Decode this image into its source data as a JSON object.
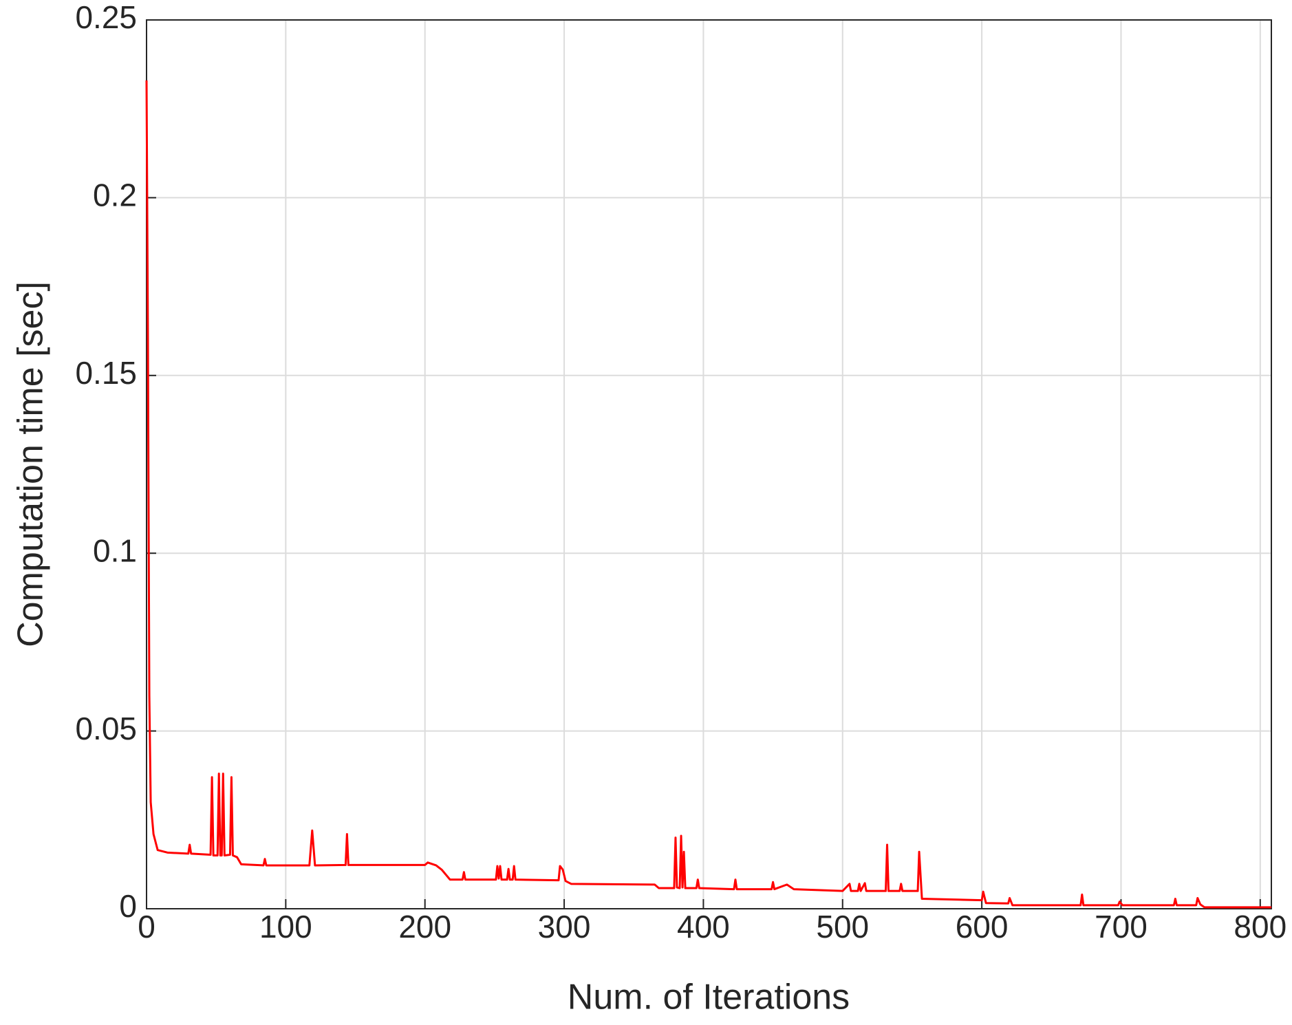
{
  "chart_data": {
    "type": "line",
    "xlabel": "Num. of Iterations",
    "ylabel": "Computation time [sec]",
    "xlim": [
      0,
      808
    ],
    "ylim": [
      0,
      0.25
    ],
    "xticks": [
      0,
      100,
      200,
      300,
      400,
      500,
      600,
      700,
      800
    ],
    "yticks": [
      0,
      0.05,
      0.1,
      0.15,
      0.2,
      0.25
    ],
    "grid": true,
    "x": [
      0,
      1,
      2,
      3,
      5,
      8,
      15,
      30,
      31,
      32,
      46,
      47,
      48,
      51,
      52,
      53,
      54,
      55,
      56,
      60,
      61,
      62,
      65,
      68,
      84,
      85,
      86,
      117,
      119,
      121,
      143,
      144,
      145,
      200,
      202,
      208,
      212,
      218,
      227,
      228,
      229,
      251,
      252,
      253,
      254,
      255,
      259,
      260,
      261,
      263,
      264,
      265,
      296,
      297,
      299,
      301,
      305,
      365,
      368,
      379,
      380,
      381,
      383,
      384,
      385,
      386,
      387,
      395,
      396,
      397,
      422,
      423,
      424,
      449,
      450,
      451,
      460,
      465,
      500,
      505,
      506,
      511,
      512,
      513,
      516,
      517,
      531,
      532,
      533,
      541,
      542,
      543,
      554,
      555,
      557,
      600,
      601,
      603,
      619,
      620,
      622,
      671,
      672,
      673,
      698,
      699,
      701,
      738,
      739,
      740,
      754,
      755,
      757,
      760,
      808
    ],
    "series": [
      {
        "color": "#ff0000",
        "values": [
          0.233,
          0.16,
          0.06,
          0.03,
          0.021,
          0.0165,
          0.0158,
          0.0155,
          0.018,
          0.0155,
          0.0152,
          0.037,
          0.015,
          0.015,
          0.038,
          0.015,
          0.015,
          0.038,
          0.015,
          0.0152,
          0.037,
          0.015,
          0.0145,
          0.0125,
          0.0122,
          0.014,
          0.0122,
          0.0122,
          0.022,
          0.0122,
          0.0123,
          0.021,
          0.0123,
          0.0123,
          0.013,
          0.0122,
          0.011,
          0.0082,
          0.0082,
          0.0103,
          0.0082,
          0.0082,
          0.012,
          0.0085,
          0.012,
          0.0082,
          0.0082,
          0.0112,
          0.0082,
          0.0082,
          0.012,
          0.0082,
          0.008,
          0.012,
          0.011,
          0.0078,
          0.007,
          0.0068,
          0.0058,
          0.0058,
          0.02,
          0.006,
          0.0058,
          0.0205,
          0.006,
          0.016,
          0.0058,
          0.0058,
          0.0082,
          0.0058,
          0.0055,
          0.0082,
          0.0055,
          0.0055,
          0.0075,
          0.0055,
          0.0068,
          0.0055,
          0.005,
          0.007,
          0.005,
          0.005,
          0.007,
          0.005,
          0.0072,
          0.005,
          0.005,
          0.018,
          0.005,
          0.005,
          0.007,
          0.005,
          0.005,
          0.016,
          0.0028,
          0.0024,
          0.0048,
          0.0016,
          0.0015,
          0.003,
          0.001,
          0.001,
          0.004,
          0.001,
          0.001,
          0.002,
          0.001,
          0.001,
          0.0028,
          0.001,
          0.001,
          0.003,
          0.0012,
          0.0004,
          0.0004
        ]
      }
    ]
  }
}
